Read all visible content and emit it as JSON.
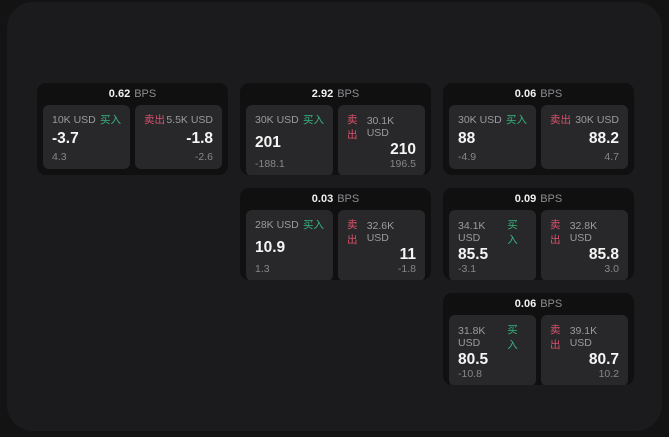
{
  "colors": {
    "page_bg": "#131314",
    "frame_bg": "#1b1b1d",
    "card_bg": "#101011",
    "panel_bg": "#28282a",
    "buy_green": "#36b47c",
    "sell_red": "#d9516c",
    "text_primary": "#f5f5f5",
    "text_muted": "#8d8d90"
  },
  "labels": {
    "buy": "买入",
    "sell": "卖出",
    "bps_unit": "BPS"
  },
  "cards": [
    {
      "row": 1,
      "col": 1,
      "bps": "0.62",
      "buy": {
        "amount": "10K USD",
        "value": "-3.7",
        "delta": "4.3"
      },
      "sell": {
        "amount": "5.5K USD",
        "value": "-1.8",
        "delta": "-2.6"
      }
    },
    {
      "row": 1,
      "col": 2,
      "bps": "2.92",
      "buy": {
        "amount": "30K USD",
        "value": "201",
        "delta": "-188.1"
      },
      "sell": {
        "amount": "30.1K USD",
        "value": "210",
        "delta": "196.5"
      }
    },
    {
      "row": 1,
      "col": 3,
      "bps": "0.06",
      "buy": {
        "amount": "30K USD",
        "value": "88",
        "delta": "-4.9"
      },
      "sell": {
        "amount": "30K USD",
        "value": "88.2",
        "delta": "4.7"
      }
    },
    {
      "row": 2,
      "col": 2,
      "bps": "0.03",
      "buy": {
        "amount": "28K USD",
        "value": "10.9",
        "delta": "1.3"
      },
      "sell": {
        "amount": "32.6K USD",
        "value": "11",
        "delta": "-1.8"
      }
    },
    {
      "row": 2,
      "col": 3,
      "bps": "0.09",
      "buy": {
        "amount": "34.1K USD",
        "value": "85.5",
        "delta": "-3.1"
      },
      "sell": {
        "amount": "32.8K USD",
        "value": "85.8",
        "delta": "3.0"
      }
    },
    {
      "row": 3,
      "col": 3,
      "bps": "0.06",
      "buy": {
        "amount": "31.8K USD",
        "value": "80.5",
        "delta": "-10.8"
      },
      "sell": {
        "amount": "39.1K USD",
        "value": "80.7",
        "delta": "10.2"
      }
    }
  ]
}
